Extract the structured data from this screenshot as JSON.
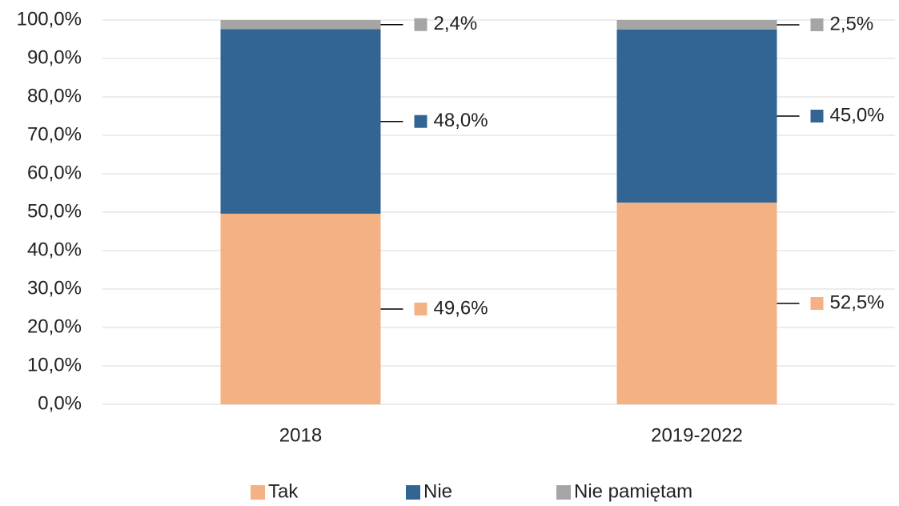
{
  "chart_data": {
    "type": "stacked_bar",
    "categories": [
      "2018",
      "2019-2022"
    ],
    "series": [
      {
        "name": "Tak",
        "color": "#f4b183",
        "values": [
          49.6,
          52.5
        ],
        "value_labels": [
          "49,6%",
          "52,5%"
        ]
      },
      {
        "name": "Nie",
        "color": "#336594",
        "values": [
          48.0,
          45.0
        ],
        "value_labels": [
          "48,0%",
          "45,0%"
        ]
      },
      {
        "name": "Nie pamiętam",
        "color": "#a5a5a5",
        "values": [
          2.4,
          2.5
        ],
        "value_labels": [
          "2,4%",
          "2,5%"
        ]
      }
    ],
    "ylim": [
      0,
      100
    ],
    "yticks": [
      {
        "value": 0,
        "label": "0,0%"
      },
      {
        "value": 10,
        "label": "10,0%"
      },
      {
        "value": 20,
        "label": "20,0%"
      },
      {
        "value": 30,
        "label": "30,0%"
      },
      {
        "value": 40,
        "label": "40,0%"
      },
      {
        "value": 50,
        "label": "50,0%"
      },
      {
        "value": 60,
        "label": "60,0%"
      },
      {
        "value": 70,
        "label": "70,0%"
      },
      {
        "value": 80,
        "label": "80,0%"
      },
      {
        "value": 90,
        "label": "90,0%"
      },
      {
        "value": 100,
        "label": "100,0%"
      }
    ],
    "grid": true,
    "legend": "bottom"
  }
}
